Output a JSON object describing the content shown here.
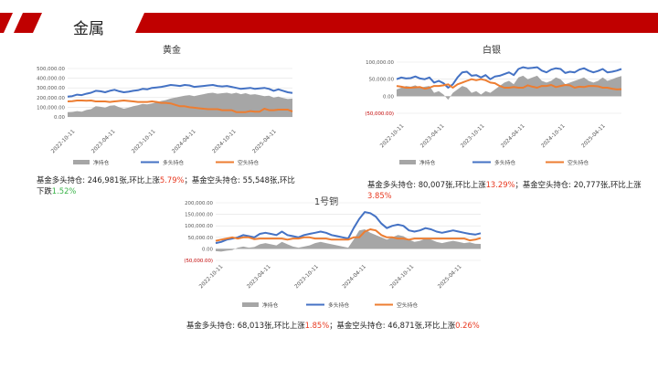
{
  "page": {
    "title": "金属"
  },
  "colors": {
    "accent": "#c00000",
    "net": "#a6a6a6",
    "long": "#4472c4",
    "short": "#ed7d31"
  },
  "chart_data": [
    {
      "id": "gold",
      "type": "line",
      "title": "黄金",
      "y_ticks": [
        "500,000.00",
        "400,000.00",
        "300,000.00",
        "200,000.00",
        "100,000.00",
        "0.00"
      ],
      "x_ticks": [
        "2022-10-11",
        "2023-04-11",
        "2023-10-11",
        "2024-04-11",
        "2024-10-11",
        "2025-04-11"
      ],
      "ylim": [
        0,
        500000
      ],
      "series": [
        {
          "name": "净持仓",
          "kind": "area",
          "values": [
            50000,
            52000,
            60000,
            55000,
            72000,
            80000,
            110000,
            105000,
            95000,
            115000,
            120000,
            100000,
            85000,
            95000,
            110000,
            120000,
            135000,
            130000,
            140000,
            150000,
            165000,
            175000,
            190000,
            200000,
            210000,
            220000,
            225000,
            215000,
            225000,
            235000,
            245000,
            250000,
            240000,
            245000,
            250000,
            240000,
            250000,
            235000,
            245000,
            230000,
            235000,
            225000,
            215000,
            220000,
            200000,
            210000,
            195000,
            185000,
            190000
          ]
        },
        {
          "name": "多头持仓",
          "kind": "line",
          "values": [
            210000,
            215000,
            230000,
            225000,
            240000,
            250000,
            270000,
            265000,
            255000,
            270000,
            280000,
            265000,
            255000,
            260000,
            270000,
            275000,
            290000,
            285000,
            300000,
            305000,
            310000,
            320000,
            330000,
            325000,
            320000,
            330000,
            325000,
            310000,
            315000,
            320000,
            325000,
            330000,
            320000,
            315000,
            320000,
            310000,
            300000,
            290000,
            295000,
            300000,
            290000,
            295000,
            300000,
            290000,
            270000,
            285000,
            270000,
            255000,
            246981
          ]
        },
        {
          "name": "空头持仓",
          "kind": "line",
          "values": [
            160000,
            162000,
            170000,
            170000,
            168000,
            170000,
            160000,
            160000,
            160000,
            155000,
            160000,
            165000,
            170000,
            165000,
            160000,
            155000,
            155000,
            155000,
            160000,
            155000,
            145000,
            145000,
            140000,
            125000,
            110000,
            110000,
            100000,
            95000,
            90000,
            85000,
            80000,
            80000,
            80000,
            70000,
            70000,
            70000,
            50000,
            50000,
            50000,
            60000,
            55000,
            55000,
            85000,
            70000,
            70000,
            75000,
            75000,
            75000,
            55548
          ]
        }
      ]
    },
    {
      "id": "silver",
      "type": "line",
      "title": "白银",
      "y_ticks": [
        "100,000.00",
        "50,000.00",
        "0.00",
        "(50,000.00)"
      ],
      "x_ticks": [
        "2022-10-11",
        "2023-04-11",
        "2023-10-11",
        "2024-04-11",
        "2024-10-11",
        "2025-04-11"
      ],
      "ylim": [
        -50000,
        100000
      ],
      "series": [
        {
          "name": "净持仓",
          "kind": "area",
          "values": [
            20000,
            25000,
            30000,
            28000,
            32000,
            25000,
            28000,
            30000,
            10000,
            15000,
            5000,
            -10000,
            10000,
            20000,
            30000,
            25000,
            10000,
            15000,
            5000,
            15000,
            10000,
            20000,
            30000,
            40000,
            45000,
            35000,
            55000,
            60000,
            50000,
            55000,
            60000,
            45000,
            40000,
            45000,
            55000,
            50000,
            35000,
            40000,
            45000,
            50000,
            55000,
            45000,
            40000,
            45000,
            55000,
            45000,
            50000,
            55000,
            59230
          ]
        },
        {
          "name": "多头持仓",
          "kind": "line",
          "values": [
            50000,
            55000,
            52000,
            53000,
            58000,
            52000,
            50000,
            55000,
            40000,
            45000,
            38000,
            25000,
            35000,
            55000,
            70000,
            72000,
            60000,
            62000,
            55000,
            62000,
            50000,
            58000,
            60000,
            65000,
            70000,
            62000,
            80000,
            85000,
            82000,
            83000,
            85000,
            75000,
            70000,
            78000,
            82000,
            80000,
            68000,
            72000,
            70000,
            78000,
            82000,
            75000,
            70000,
            74000,
            80000,
            70000,
            72000,
            75000,
            80007
          ]
        },
        {
          "name": "空头持仓",
          "kind": "line",
          "values": [
            30000,
            28000,
            25000,
            25000,
            26000,
            27000,
            22000,
            25000,
            30000,
            30000,
            32000,
            35000,
            25000,
            35000,
            40000,
            45000,
            50000,
            47000,
            50000,
            47000,
            40000,
            38000,
            30000,
            25000,
            25000,
            27000,
            25000,
            25000,
            32000,
            28000,
            25000,
            30000,
            30000,
            33000,
            27000,
            30000,
            33000,
            32000,
            25000,
            28000,
            27000,
            30000,
            30000,
            29000,
            25000,
            25000,
            22000,
            20000,
            20777
          ]
        }
      ]
    },
    {
      "id": "copper",
      "type": "line",
      "title": "1号铜",
      "y_ticks": [
        "200,000.00",
        "150,000.00",
        "100,000.00",
        "50,000.00",
        "0.00",
        "(50,000.00)"
      ],
      "x_ticks": [
        "2022-10-11",
        "2023-04-11",
        "2023-10-11",
        "2024-04-11",
        "2024-10-11",
        "2025-04-11"
      ],
      "ylim": [
        -50000,
        200000
      ],
      "series": [
        {
          "name": "净持仓",
          "kind": "area",
          "values": [
            -10000,
            -12000,
            -8000,
            -5000,
            5000,
            10000,
            5000,
            8000,
            20000,
            25000,
            20000,
            15000,
            30000,
            20000,
            10000,
            5000,
            10000,
            15000,
            25000,
            30000,
            25000,
            20000,
            15000,
            10000,
            5000,
            40000,
            80000,
            85000,
            70000,
            60000,
            50000,
            40000,
            50000,
            60000,
            55000,
            40000,
            30000,
            35000,
            45000,
            40000,
            30000,
            25000,
            30000,
            35000,
            30000,
            25000,
            28000,
            22000,
            21300
          ]
        },
        {
          "name": "多头持仓",
          "kind": "line",
          "values": [
            25000,
            30000,
            40000,
            45000,
            50000,
            60000,
            55000,
            50000,
            65000,
            70000,
            65000,
            60000,
            75000,
            60000,
            55000,
            50000,
            60000,
            65000,
            70000,
            75000,
            70000,
            60000,
            55000,
            50000,
            45000,
            90000,
            130000,
            160000,
            155000,
            140000,
            110000,
            90000,
            100000,
            105000,
            100000,
            80000,
            75000,
            80000,
            90000,
            85000,
            75000,
            70000,
            75000,
            80000,
            75000,
            70000,
            65000,
            62000,
            68013
          ]
        },
        {
          "name": "空头持仓",
          "kind": "line",
          "values": [
            35000,
            40000,
            45000,
            50000,
            45000,
            50000,
            50000,
            42000,
            45000,
            45000,
            45000,
            45000,
            45000,
            40000,
            45000,
            45000,
            50000,
            50000,
            45000,
            45000,
            45000,
            40000,
            40000,
            40000,
            40000,
            50000,
            50000,
            75000,
            85000,
            80000,
            60000,
            50000,
            50000,
            45000,
            45000,
            40000,
            45000,
            45000,
            45000,
            45000,
            45000,
            45000,
            45000,
            45000,
            45000,
            45000,
            37000,
            40000,
            46871
          ]
        }
      ]
    }
  ],
  "captions": {
    "gold": {
      "pre": "基金多头持仓: 246,981张,环比上涨",
      "v1": "5.79%",
      "mid": "；基金空头持仓: 55,548张,环比下跌",
      "v2": "1.52%"
    },
    "silver": {
      "pre": "基金多头持仓: 80,007张,环比上涨",
      "v1": "13.29%",
      "mid": "；基金空头持仓: 20,777张,环比上涨",
      "v2": "3.85%"
    },
    "copper": {
      "pre": "基金多头持仓: 68,013张,环比上涨",
      "v1": "1.85%",
      "mid": "；基金空头持仓: 46,871张,环比上涨",
      "v2": "0.26%"
    }
  }
}
